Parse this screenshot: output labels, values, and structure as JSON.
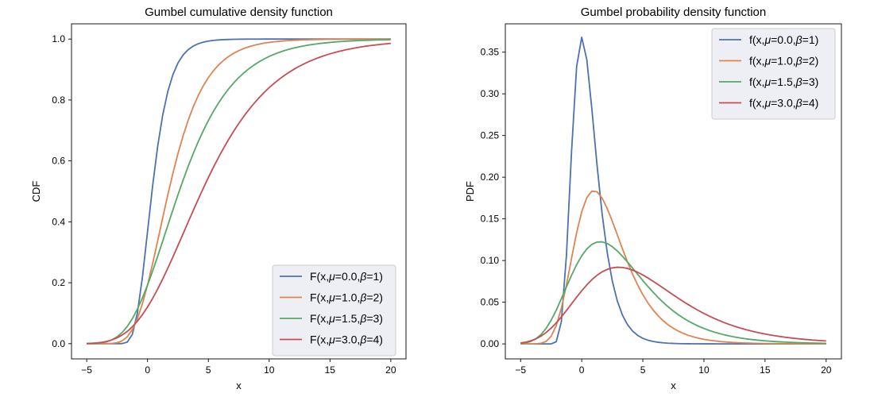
{
  "chart_data": [
    {
      "type": "line",
      "title": "Gumbel cumulative density function",
      "xlabel": "x",
      "ylabel": "CDF",
      "xlim": [
        -6.25,
        21.25
      ],
      "ylim": [
        -0.05,
        1.05
      ],
      "xticks": [
        -5,
        0,
        5,
        10,
        15,
        20
      ],
      "yticks": [
        0.0,
        0.2,
        0.4,
        0.6,
        0.8,
        1.0
      ],
      "xtick_labels": [
        "−5",
        "0",
        "5",
        "10",
        "15",
        "20"
      ],
      "ytick_labels": [
        "0.0",
        "0.2",
        "0.4",
        "0.6",
        "0.8",
        "1.0"
      ],
      "grid": false,
      "legend_position": "lower-right",
      "function": "cdf",
      "x_range": [
        -5,
        20
      ],
      "series": [
        {
          "name": "F(x,μ=0.0,β=1)",
          "mu_label": "μ",
          "beta_label": "β",
          "mu": 0.0,
          "beta": 1,
          "color": "#4c72b0",
          "prefix": "F(x,",
          "mu_eq": "=0.0,",
          "beta_eq": "=1)"
        },
        {
          "name": "F(x,μ=1.0,β=2)",
          "mu": 1.0,
          "beta": 2,
          "color": "#dd8452",
          "prefix": "F(x,",
          "mu_eq": "=1.0,",
          "beta_eq": "=2)"
        },
        {
          "name": "F(x,μ=1.5,β=3)",
          "mu": 1.5,
          "beta": 3,
          "color": "#55a868",
          "prefix": "F(x,",
          "mu_eq": "=1.5,",
          "beta_eq": "=3)"
        },
        {
          "name": "F(x,μ=3.0,β=4)",
          "mu": 3.0,
          "beta": 4,
          "color": "#c44e52",
          "prefix": "F(x,",
          "mu_eq": "=3.0,",
          "beta_eq": "=4)"
        }
      ]
    },
    {
      "type": "line",
      "title": "Gumbel probability density function",
      "xlabel": "x",
      "ylabel": "PDF",
      "xlim": [
        -6.25,
        21.25
      ],
      "ylim": [
        -0.018,
        0.384
      ],
      "xticks": [
        -5,
        0,
        5,
        10,
        15,
        20
      ],
      "yticks": [
        0.0,
        0.05,
        0.1,
        0.15,
        0.2,
        0.25,
        0.3,
        0.35
      ],
      "xtick_labels": [
        "−5",
        "0",
        "5",
        "10",
        "15",
        "20"
      ],
      "ytick_labels": [
        "0.00",
        "0.05",
        "0.10",
        "0.15",
        "0.20",
        "0.25",
        "0.30",
        "0.35"
      ],
      "grid": false,
      "legend_position": "upper-right",
      "function": "pdf",
      "x_range": [
        -5,
        20
      ],
      "series": [
        {
          "name": "f(x,μ=0.0,β=1)",
          "mu": 0.0,
          "beta": 1,
          "color": "#4c72b0",
          "prefix": "f(x,",
          "mu_eq": "=0.0,",
          "beta_eq": "=1)"
        },
        {
          "name": "f(x,μ=1.0,β=2)",
          "mu": 1.0,
          "beta": 2,
          "color": "#dd8452",
          "prefix": "f(x,",
          "mu_eq": "=1.0,",
          "beta_eq": "=2)"
        },
        {
          "name": "f(x,μ=1.5,β=3)",
          "mu": 1.5,
          "beta": 3,
          "color": "#55a868",
          "prefix": "f(x,",
          "mu_eq": "=1.5,",
          "beta_eq": "=3)"
        },
        {
          "name": "f(x,μ=3.0,β=4)",
          "mu": 3.0,
          "beta": 4,
          "color": "#c44e52",
          "prefix": "f(x,",
          "mu_eq": "=3.0,",
          "beta_eq": "=4)"
        }
      ]
    }
  ]
}
